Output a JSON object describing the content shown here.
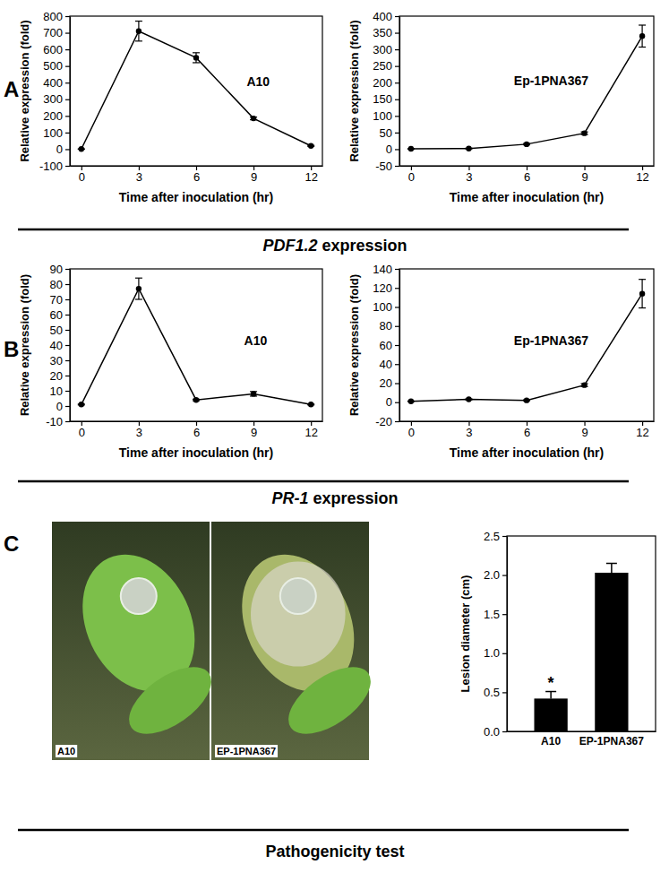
{
  "panels": [
    {
      "label": "A",
      "caption_gene": "PDF1.2",
      "caption_text": "expression"
    },
    {
      "label": "B",
      "caption_gene": "PR-1",
      "caption_text": "expression"
    },
    {
      "label": "C",
      "caption": "Pathogenicity test"
    }
  ],
  "photos": [
    {
      "label": "A10"
    },
    {
      "label": "EP-1PNA367"
    }
  ],
  "chart_data": [
    {
      "type": "line",
      "x_label": "Time after inoculation (hr)",
      "y_label": "Relative expression (fold)",
      "x": [
        0,
        3,
        6,
        9,
        12
      ],
      "xlim": [
        -0.6,
        12.6
      ],
      "xticks": [
        0,
        3,
        6,
        9,
        12
      ],
      "ylim": [
        -100,
        800
      ],
      "yticks": [
        -100,
        0,
        100,
        200,
        300,
        400,
        500,
        600,
        700,
        800
      ],
      "series": [
        {
          "name": "A10",
          "color": "#000000",
          "marker": "circle",
          "values": [
            1,
            710,
            550,
            185,
            20
          ],
          "errors": [
            1,
            60,
            30,
            8,
            3
          ]
        }
      ]
    },
    {
      "type": "line",
      "x_label": "Time after inoculation (hr)",
      "y_label": "Relative expression (fold)",
      "x": [
        0,
        3,
        6,
        9,
        12
      ],
      "xlim": [
        -0.6,
        12.6
      ],
      "xticks": [
        0,
        3,
        6,
        9,
        12
      ],
      "ylim": [
        -50,
        400
      ],
      "yticks": [
        -50,
        0,
        50,
        100,
        150,
        200,
        250,
        300,
        350,
        400
      ],
      "series": [
        {
          "name": "Ep-1PNA367",
          "color": "#000000",
          "marker": "circle",
          "values": [
            1,
            2,
            15,
            48,
            340
          ],
          "errors": [
            0.5,
            1,
            2,
            4,
            33
          ]
        }
      ]
    },
    {
      "type": "line",
      "x_label": "Time after inoculation (hr)",
      "y_label": "Relative expression (fold)",
      "x": [
        0,
        3,
        6,
        9,
        12
      ],
      "xlim": [
        -0.6,
        12.6
      ],
      "xticks": [
        0,
        3,
        6,
        9,
        12
      ],
      "ylim": [
        -10,
        90
      ],
      "yticks": [
        -10,
        0,
        10,
        20,
        30,
        40,
        50,
        60,
        70,
        80,
        90
      ],
      "series": [
        {
          "name": "A10",
          "color": "#000000",
          "marker": "circle",
          "values": [
            1,
            77,
            4,
            8,
            1
          ],
          "errors": [
            0.3,
            7,
            0.5,
            1.5,
            0.3
          ]
        }
      ]
    },
    {
      "type": "line",
      "x_label": "Time after inoculation (hr)",
      "y_label": "Relative expression (fold)",
      "x": [
        0,
        3,
        6,
        9,
        12
      ],
      "xlim": [
        -0.6,
        12.6
      ],
      "xticks": [
        0,
        3,
        6,
        9,
        12
      ],
      "ylim": [
        -20,
        140
      ],
      "yticks": [
        -20,
        0,
        20,
        40,
        60,
        80,
        100,
        120,
        140
      ],
      "series": [
        {
          "name": "Ep-1PNA367",
          "color": "#000000",
          "marker": "circle",
          "values": [
            1,
            3,
            2,
            18,
            114
          ],
          "errors": [
            0.3,
            0.5,
            0.5,
            1.5,
            15
          ]
        }
      ]
    },
    {
      "type": "bar",
      "y_label": "Lesion diameter (cm)",
      "categories": [
        "A10",
        "EP-1PNA367"
      ],
      "values": [
        0.42,
        2.03
      ],
      "errors": [
        0.09,
        0.12
      ],
      "color": "#000000",
      "ylim": [
        0,
        2.5
      ],
      "yticks": [
        {
          "value": 0,
          "label": "0.0"
        },
        {
          "value": 0.5,
          "label": "0.5"
        },
        {
          "value": 1,
          "label": "1.0"
        },
        {
          "value": 1.5,
          "label": "1.5"
        },
        {
          "value": 2,
          "label": "2.0"
        },
        {
          "value": 2.5,
          "label": "2.5"
        }
      ],
      "annotations": [
        {
          "text": "*",
          "category": "A10"
        }
      ]
    }
  ]
}
